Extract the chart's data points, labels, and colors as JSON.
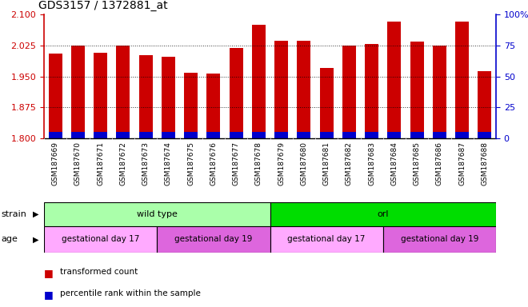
{
  "title": "GDS3157 / 1372881_at",
  "samples": [
    "GSM187669",
    "GSM187670",
    "GSM187671",
    "GSM187672",
    "GSM187673",
    "GSM187674",
    "GSM187675",
    "GSM187676",
    "GSM187677",
    "GSM187678",
    "GSM187679",
    "GSM187680",
    "GSM187681",
    "GSM187682",
    "GSM187683",
    "GSM187684",
    "GSM187685",
    "GSM187686",
    "GSM187687",
    "GSM187688"
  ],
  "transformed_count": [
    2.005,
    2.025,
    2.007,
    2.025,
    2.002,
    1.998,
    1.958,
    1.957,
    2.018,
    2.075,
    2.037,
    2.037,
    1.97,
    2.025,
    2.028,
    2.083,
    2.035,
    2.025,
    2.083,
    1.962
  ],
  "percentile_rank": [
    5,
    5,
    5,
    5,
    5,
    5,
    5,
    5,
    5,
    5,
    5,
    5,
    5,
    5,
    5,
    5,
    5,
    5,
    5,
    5
  ],
  "ylim": [
    1.8,
    2.1
  ],
  "yticks": [
    1.8,
    1.875,
    1.95,
    2.025,
    2.1
  ],
  "right_yticks": [
    0,
    25,
    50,
    75,
    100
  ],
  "right_ylim": [
    0,
    100
  ],
  "bar_color_red": "#cc0000",
  "bar_color_blue": "#0000cc",
  "strain_groups": [
    {
      "label": "wild type",
      "start": 0,
      "end": 10,
      "color": "#aaffaa"
    },
    {
      "label": "orl",
      "start": 10,
      "end": 20,
      "color": "#00dd00"
    }
  ],
  "age_groups": [
    {
      "label": "gestational day 17",
      "start": 0,
      "end": 5,
      "color": "#ffaaff"
    },
    {
      "label": "gestational day 19",
      "start": 5,
      "end": 10,
      "color": "#dd66dd"
    },
    {
      "label": "gestational day 17",
      "start": 10,
      "end": 15,
      "color": "#ffaaff"
    },
    {
      "label": "gestational day 19",
      "start": 15,
      "end": 20,
      "color": "#dd66dd"
    }
  ],
  "legend_items": [
    {
      "label": "transformed count",
      "color": "#cc0000"
    },
    {
      "label": "percentile rank within the sample",
      "color": "#0000cc"
    }
  ],
  "xlabel_bg": "#d8d8d8",
  "plot_bg": "#ffffff"
}
